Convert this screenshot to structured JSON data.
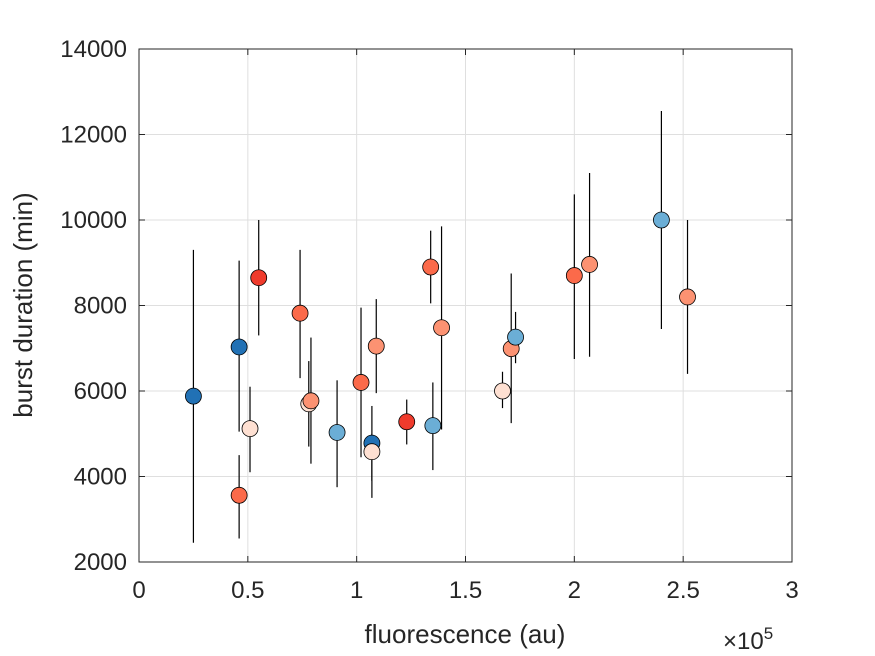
{
  "chart_data": {
    "type": "scatter",
    "title": "",
    "xlabel": "fluorescence (au)",
    "ylabel": "burst duration (min)",
    "x_multiplier_base": "×10",
    "x_multiplier_exponent": "5",
    "xlim": [
      0,
      3
    ],
    "ylim": [
      2000,
      14000
    ],
    "xticks": [
      0,
      0.5,
      1,
      1.5,
      2,
      2.5,
      3
    ],
    "xtick_labels": [
      "0",
      "0.5",
      "1",
      "1.5",
      "2",
      "2.5",
      "3"
    ],
    "yticks": [
      2000,
      4000,
      6000,
      8000,
      10000,
      12000,
      14000
    ],
    "ytick_labels": [
      "2000",
      "4000",
      "6000",
      "8000",
      "10000",
      "12000",
      "14000"
    ],
    "grid": true,
    "points": [
      {
        "x": 0.25,
        "y": 5880,
        "low": 2450,
        "high": 9300,
        "color": "#2171b5"
      },
      {
        "x": 0.46,
        "y": 3560,
        "low": 2550,
        "high": 4500,
        "color": "#fb6a4a"
      },
      {
        "x": 0.46,
        "y": 7030,
        "low": 5050,
        "high": 9050,
        "color": "#2171b5"
      },
      {
        "x": 0.51,
        "y": 5120,
        "low": 4100,
        "high": 6100,
        "color": "#fee0d2"
      },
      {
        "x": 0.55,
        "y": 8650,
        "low": 7300,
        "high": 10000,
        "color": "#ef3b2c"
      },
      {
        "x": 0.74,
        "y": 7820,
        "low": 6300,
        "high": 9300,
        "color": "#fb6a4a"
      },
      {
        "x": 0.78,
        "y": 5700,
        "low": 4700,
        "high": 6700,
        "color": "#fee0d2"
      },
      {
        "x": 0.79,
        "y": 5770,
        "low": 4300,
        "high": 7250,
        "color": "#fc9272"
      },
      {
        "x": 0.91,
        "y": 5030,
        "low": 3750,
        "high": 6250,
        "color": "#6baed6"
      },
      {
        "x": 1.02,
        "y": 6200,
        "low": 4450,
        "high": 7950,
        "color": "#fb6a4a"
      },
      {
        "x": 1.07,
        "y": 4780,
        "low": 3900,
        "high": 5650,
        "color": "#2171b5"
      },
      {
        "x": 1.07,
        "y": 4580,
        "low": 3500,
        "high": 5000,
        "color": "#fee0d2"
      },
      {
        "x": 1.09,
        "y": 7050,
        "low": 5950,
        "high": 8150,
        "color": "#fc9272"
      },
      {
        "x": 1.23,
        "y": 5280,
        "low": 4750,
        "high": 5800,
        "color": "#ef3b2c"
      },
      {
        "x": 1.34,
        "y": 8900,
        "low": 8050,
        "high": 9750,
        "color": "#fb6a4a"
      },
      {
        "x": 1.35,
        "y": 5190,
        "low": 4150,
        "high": 6200,
        "color": "#6baed6"
      },
      {
        "x": 1.39,
        "y": 7480,
        "low": 5100,
        "high": 9850,
        "color": "#fc9272"
      },
      {
        "x": 1.67,
        "y": 6000,
        "low": 5600,
        "high": 6450,
        "color": "#fee0d2"
      },
      {
        "x": 1.71,
        "y": 6990,
        "low": 5250,
        "high": 8750,
        "color": "#fc9272"
      },
      {
        "x": 1.73,
        "y": 7260,
        "low": 6650,
        "high": 7850,
        "color": "#6baed6"
      },
      {
        "x": 2.0,
        "y": 8700,
        "low": 6750,
        "high": 10600,
        "color": "#fb6a4a"
      },
      {
        "x": 2.07,
        "y": 8960,
        "low": 6800,
        "high": 11100,
        "color": "#fc9272"
      },
      {
        "x": 2.4,
        "y": 10000,
        "low": 7450,
        "high": 12550,
        "color": "#6baed6"
      },
      {
        "x": 2.52,
        "y": 8200,
        "low": 6400,
        "high": 10000,
        "color": "#fc9272"
      }
    ]
  }
}
